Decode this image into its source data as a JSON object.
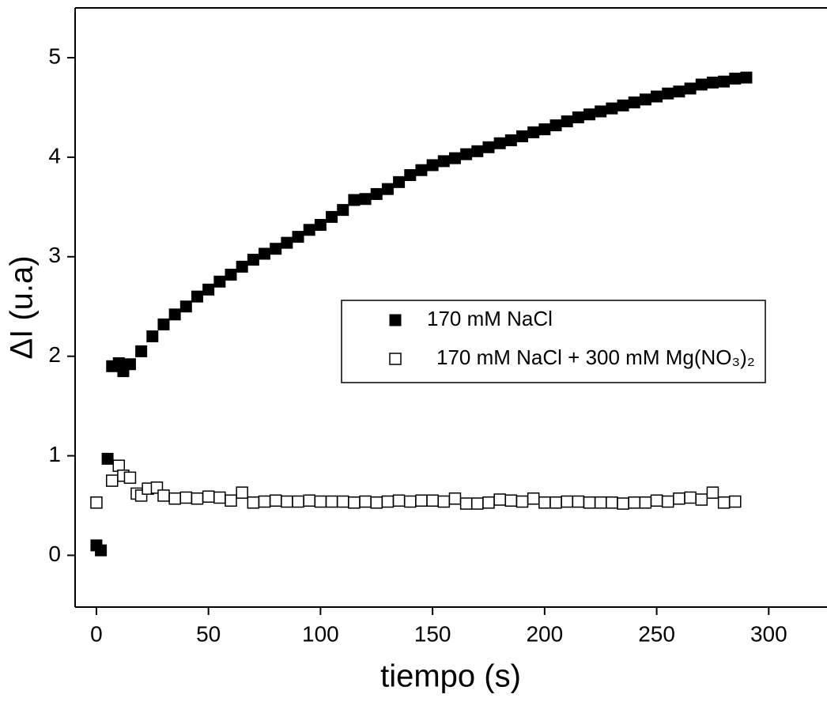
{
  "chart_data": {
    "type": "scatter",
    "x_label": "tiempo (s)",
    "y_label": "ΔI (u.a)",
    "xlim": [
      -9.5,
      326
    ],
    "xticks": [
      0,
      50,
      100,
      150,
      200,
      250,
      300
    ],
    "ylim": [
      -0.52,
      5.5
    ],
    "yticks": [
      0,
      1,
      2,
      3,
      4,
      5
    ],
    "series": [
      {
        "name": "170 mM NaCl",
        "color": "#000000",
        "marker": "filled-square",
        "x": [
          0,
          2,
          5,
          7,
          10,
          12,
          15,
          20,
          25,
          30,
          35,
          40,
          45,
          50,
          55,
          60,
          65,
          70,
          75,
          80,
          85,
          90,
          95,
          100,
          105,
          110,
          115,
          120,
          125,
          130,
          135,
          140,
          145,
          150,
          155,
          160,
          165,
          170,
          175,
          180,
          185,
          190,
          195,
          200,
          205,
          210,
          215,
          220,
          225,
          230,
          235,
          240,
          245,
          250,
          255,
          260,
          265,
          270,
          275,
          280,
          285,
          290
        ],
        "values": [
          0.1,
          0.05,
          0.97,
          1.9,
          1.93,
          1.85,
          1.92,
          2.05,
          2.2,
          2.32,
          2.42,
          2.5,
          2.6,
          2.67,
          2.75,
          2.82,
          2.9,
          2.97,
          3.03,
          3.08,
          3.14,
          3.2,
          3.27,
          3.32,
          3.4,
          3.47,
          3.57,
          3.58,
          3.63,
          3.68,
          3.75,
          3.82,
          3.87,
          3.92,
          3.96,
          3.99,
          4.03,
          4.06,
          4.1,
          4.14,
          4.17,
          4.21,
          4.25,
          4.28,
          4.32,
          4.36,
          4.4,
          4.43,
          4.46,
          4.49,
          4.52,
          4.55,
          4.58,
          4.61,
          4.64,
          4.66,
          4.69,
          4.73,
          4.75,
          4.76,
          4.79,
          4.8
        ]
      },
      {
        "name": "170 mM NaCl + 300 mM Mg(NO₃)₂",
        "color": "#000000",
        "marker": "open-square",
        "x": [
          0,
          7,
          10,
          12,
          15,
          18,
          20,
          23,
          27,
          30,
          35,
          40,
          45,
          50,
          55,
          60,
          65,
          70,
          75,
          80,
          85,
          90,
          95,
          100,
          105,
          110,
          115,
          120,
          125,
          130,
          135,
          140,
          145,
          150,
          155,
          160,
          165,
          170,
          175,
          180,
          185,
          190,
          195,
          200,
          205,
          210,
          215,
          220,
          225,
          230,
          235,
          240,
          245,
          250,
          255,
          260,
          265,
          270,
          275,
          280,
          285
        ],
        "values": [
          0.53,
          0.75,
          0.9,
          0.8,
          0.78,
          0.62,
          0.6,
          0.67,
          0.68,
          0.6,
          0.57,
          0.58,
          0.57,
          0.59,
          0.58,
          0.55,
          0.63,
          0.53,
          0.54,
          0.55,
          0.54,
          0.54,
          0.55,
          0.54,
          0.54,
          0.54,
          0.53,
          0.54,
          0.53,
          0.54,
          0.55,
          0.54,
          0.55,
          0.55,
          0.54,
          0.57,
          0.52,
          0.52,
          0.53,
          0.56,
          0.55,
          0.54,
          0.57,
          0.53,
          0.53,
          0.54,
          0.54,
          0.53,
          0.53,
          0.53,
          0.52,
          0.53,
          0.53,
          0.55,
          0.54,
          0.57,
          0.58,
          0.56,
          0.63,
          0.53,
          0.54
        ]
      }
    ]
  }
}
